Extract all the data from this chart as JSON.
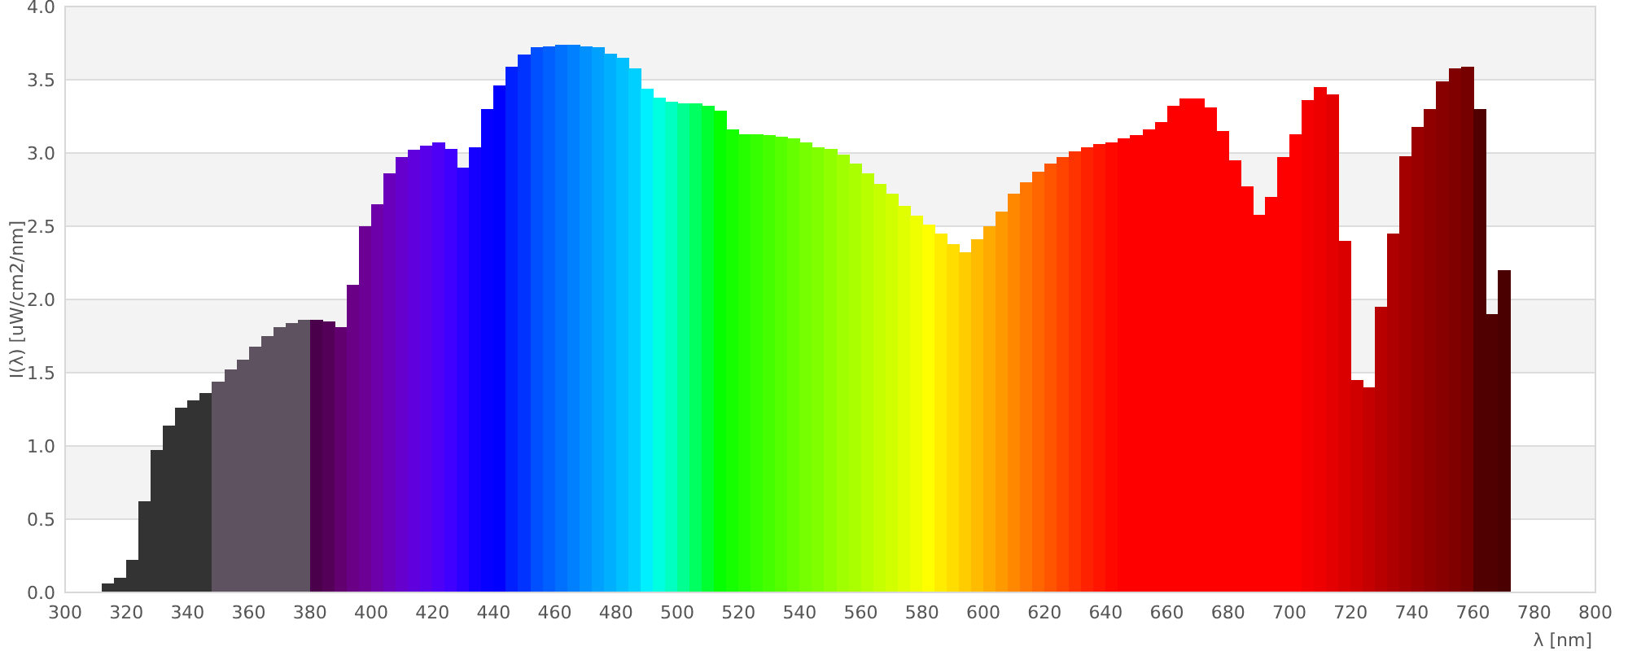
{
  "chart_data": {
    "type": "histogram",
    "xlabel": "λ [nm]",
    "ylabel": "I(λ)  [uW/cm2/nm]",
    "bins": [
      312,
      316,
      320,
      324,
      328,
      332,
      336,
      340,
      344,
      348,
      352,
      356,
      360,
      364,
      368,
      372,
      376,
      380,
      384,
      388,
      392,
      396,
      400,
      404,
      408,
      412,
      416,
      420,
      424,
      428,
      432,
      436,
      440,
      444,
      448,
      452,
      456,
      460,
      464,
      468,
      472,
      476,
      480,
      484,
      488,
      492,
      496,
      500,
      504,
      508,
      512,
      516,
      520,
      524,
      528,
      532,
      536,
      540,
      544,
      548,
      552,
      556,
      560,
      564,
      568,
      572,
      576,
      580,
      584,
      588,
      592,
      596,
      600,
      604,
      608,
      612,
      616,
      620,
      624,
      628,
      632,
      636,
      640,
      644,
      648,
      652,
      656,
      660,
      664,
      668,
      672,
      676,
      680,
      684,
      688,
      692,
      696,
      700,
      704,
      708,
      712,
      716,
      720,
      724,
      728,
      732,
      736,
      740,
      744,
      748,
      752,
      756,
      760,
      764,
      768,
      772
    ],
    "values": [
      0.06,
      0.1,
      0.22,
      0.62,
      0.97,
      1.14,
      1.26,
      1.31,
      1.36,
      1.44,
      1.52,
      1.59,
      1.68,
      1.75,
      1.81,
      1.84,
      1.86,
      1.86,
      1.85,
      1.81,
      2.1,
      2.5,
      2.65,
      2.86,
      2.97,
      3.02,
      3.05,
      3.07,
      3.03,
      2.9,
      3.04,
      3.3,
      3.46,
      3.59,
      3.67,
      3.72,
      3.73,
      3.74,
      3.74,
      3.73,
      3.72,
      3.68,
      3.65,
      3.58,
      3.44,
      3.38,
      3.35,
      3.34,
      3.34,
      3.32,
      3.29,
      3.16,
      3.13,
      3.13,
      3.12,
      3.11,
      3.1,
      3.07,
      3.04,
      3.03,
      2.99,
      2.93,
      2.86,
      2.79,
      2.72,
      2.64,
      2.57,
      2.51,
      2.45,
      2.38,
      2.32,
      2.41,
      2.5,
      2.6,
      2.72,
      2.8,
      2.87,
      2.93,
      2.97,
      3.01,
      3.04,
      3.06,
      3.07,
      3.1,
      3.12,
      3.16,
      3.21,
      3.32,
      3.37,
      3.37,
      3.31,
      3.15,
      2.95,
      2.77,
      2.58,
      2.7,
      2.97,
      3.13,
      3.36,
      3.45,
      3.4,
      2.4,
      1.45,
      1.4,
      1.95,
      2.45,
      2.98,
      3.18,
      3.3,
      3.49,
      3.58,
      3.59,
      3.3,
      1.9,
      2.2
    ],
    "colors": [
      "#333333",
      "#333333",
      "#333333",
      "#333333",
      "#333333",
      "#333333",
      "#333333",
      "#333333",
      "#333333",
      "#5e5260",
      "#5e5260",
      "#5e5260",
      "#5e5260",
      "#5e5260",
      "#5e5260",
      "#5e5260",
      "#5e5260",
      "#4a004a",
      "#550058",
      "#620070",
      "#690085",
      "#6c0095",
      "#6d00a8",
      "#6a00bb",
      "#6600cc",
      "#6000dd",
      "#5800ea",
      "#4d00f5",
      "#4000ff",
      "#2b00ff",
      "#1500ff",
      "#0500ff",
      "#0000ff",
      "#0020ff",
      "#0033ff",
      "#0050ff",
      "#0060ff",
      "#0070ff",
      "#0080ff",
      "#0090ff",
      "#00a0ff",
      "#00b0ff",
      "#00c0ff",
      "#00d0ff",
      "#00f0ff",
      "#00ffe0",
      "#00ffc0",
      "#00ff90",
      "#00ff60",
      "#00ff30",
      "#05ff00",
      "#15ff00",
      "#25ff00",
      "#35ff00",
      "#45ff00",
      "#55ff00",
      "#65ff00",
      "#75ff00",
      "#80ff00",
      "#90ff00",
      "#a0ff00",
      "#aaff00",
      "#b8ff00",
      "#c5ff00",
      "#d2ff00",
      "#e0ff00",
      "#f0ff00",
      "#ffff00",
      "#ffec00",
      "#ffdd00",
      "#ffcc00",
      "#ffbb00",
      "#ffaa00",
      "#ff9900",
      "#ff8800",
      "#ff7700",
      "#ff6600",
      "#ff5500",
      "#ff4400",
      "#ff3300",
      "#ff2200",
      "#ff1500",
      "#ff0800",
      "#ff0000",
      "#ff0000",
      "#ff0000",
      "#ff0000",
      "#ff0000",
      "#ff0000",
      "#ff0000",
      "#ff0000",
      "#ff0000",
      "#ff0000",
      "#ff0000",
      "#ff0000",
      "#ff0000",
      "#ff0000",
      "#ff0000",
      "#f50000",
      "#ee0000",
      "#e40000",
      "#da0000",
      "#d00000",
      "#c50000",
      "#b80000",
      "#ae0000",
      "#a40000",
      "#9a0000",
      "#900000",
      "#880000",
      "#800000",
      "#760000",
      "#500000",
      "#500000",
      "#4a0000"
    ],
    "xlim": [
      300,
      800
    ],
    "xticks": [
      300,
      320,
      340,
      360,
      380,
      400,
      420,
      440,
      460,
      480,
      500,
      520,
      540,
      560,
      580,
      600,
      620,
      640,
      660,
      680,
      700,
      720,
      740,
      760,
      780,
      800
    ],
    "ylim": [
      0,
      4
    ],
    "yticks": [
      {
        "value": 0,
        "label": "0.0"
      },
      {
        "value": 0.5,
        "label": "0.5"
      },
      {
        "value": 1,
        "label": "1.0"
      },
      {
        "value": 1.5,
        "label": "1.5"
      },
      {
        "value": 2,
        "label": "2.0"
      },
      {
        "value": 2.5,
        "label": "2.5"
      },
      {
        "value": 3,
        "label": "3.0"
      },
      {
        "value": 3.5,
        "label": "3.5"
      },
      {
        "value": 4,
        "label": "4.0"
      }
    ],
    "grid": "y"
  }
}
